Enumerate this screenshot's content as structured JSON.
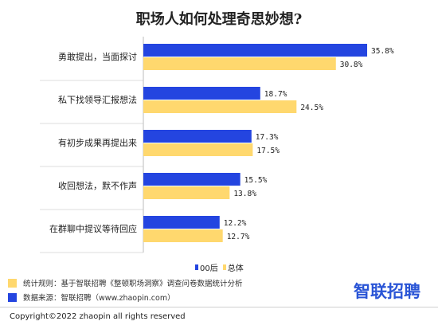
{
  "title": "职场人如何处理奇思妙想?",
  "chart_data": {
    "type": "bar",
    "orientation": "horizontal",
    "categories": [
      "勇敢提出，当面探讨",
      "私下找领导汇报想法",
      "有初步成果再提出来",
      "收回想法，默不作声",
      "在群聊中提议等待回应"
    ],
    "series": [
      {
        "name": "00后",
        "values": [
          35.8,
          18.7,
          17.3,
          15.5,
          12.2
        ],
        "labels": [
          "35.8%",
          "18.7%",
          "17.3%",
          "15.5%",
          "12.2%"
        ],
        "color": "#2445e0"
      },
      {
        "name": "总体",
        "values": [
          30.8,
          24.5,
          17.5,
          13.8,
          12.7
        ],
        "labels": [
          "30.8%",
          "24.5%",
          "17.5%",
          "13.8%",
          "12.7%"
        ],
        "color": "#ffd86e"
      }
    ],
    "xlim": [
      0,
      40
    ],
    "legend_position": "bottom-right",
    "grid": false
  },
  "legend": {
    "series1": "00后",
    "series2": "总体"
  },
  "notes": [
    {
      "text": "统计规则：基于智联招聘《整顿职场洞察》调查问卷数据统计分析",
      "color": "#ffd86e"
    },
    {
      "text": "数据来源：智联招聘（www.zhaopin.com）",
      "color": "#2445e0"
    }
  ],
  "brand": "智联招聘",
  "copyright": "Copyright©2022 zhaopin all rights reserved"
}
